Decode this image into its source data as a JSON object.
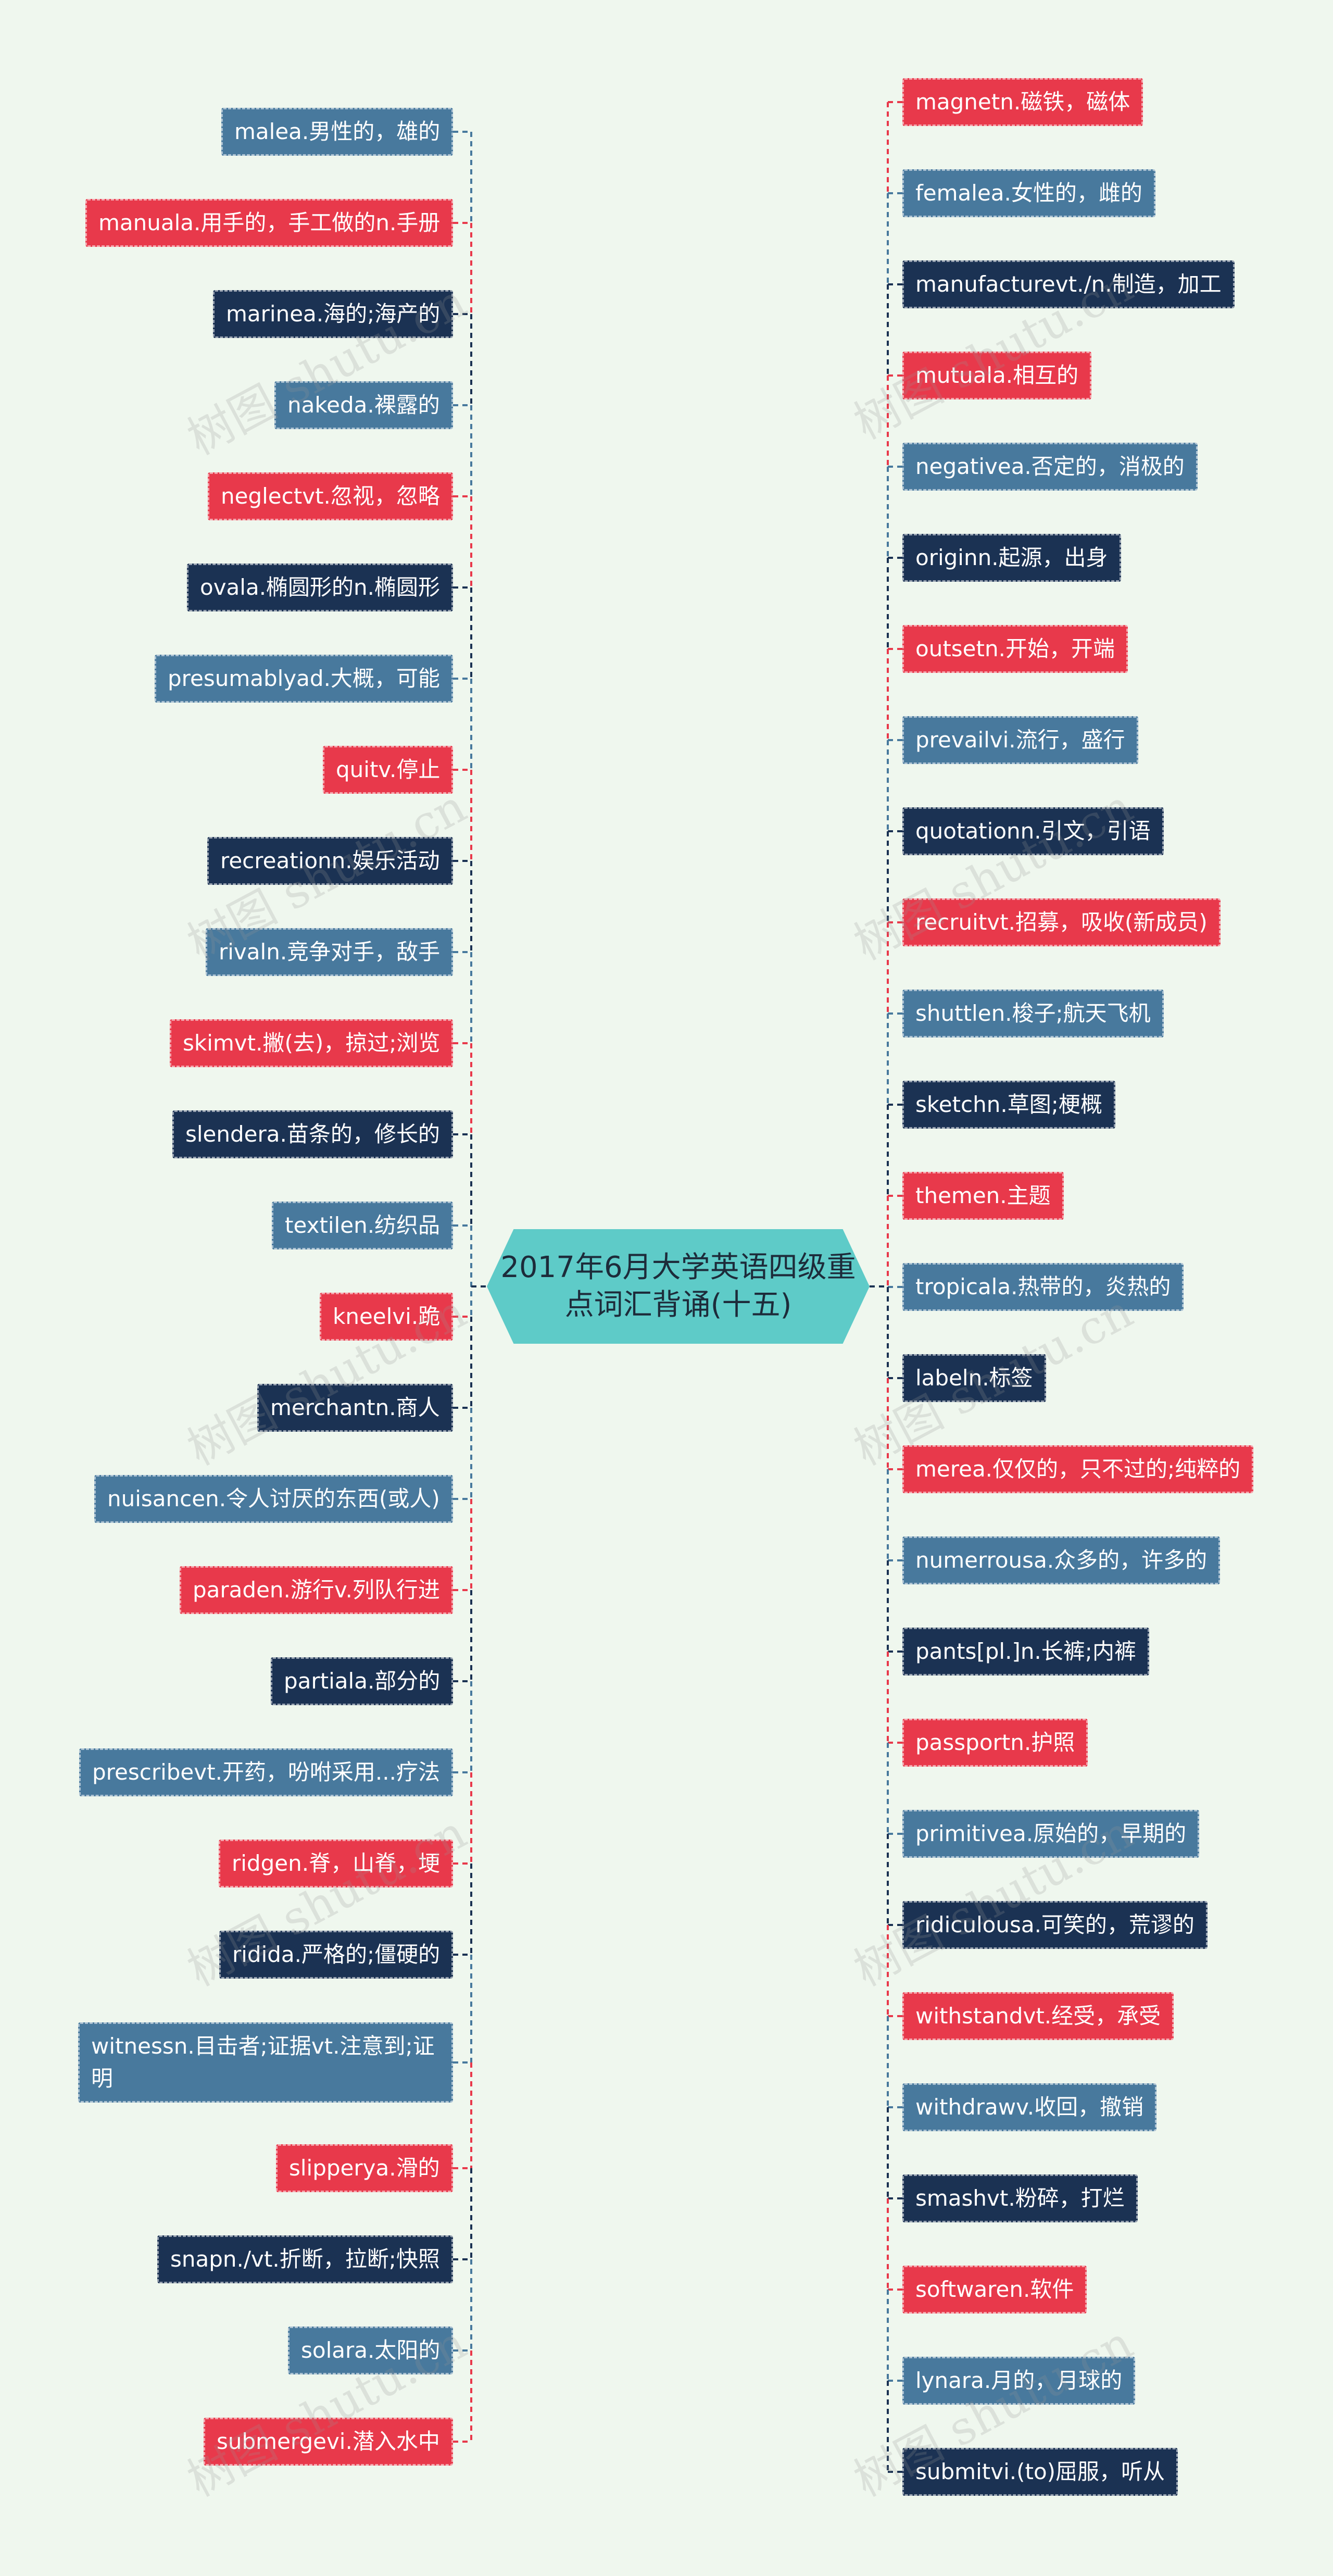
{
  "center": {
    "title": "2017年6月大学英语四级重点词汇背诵(十五)"
  },
  "colors": {
    "red": "#e8394b",
    "blue": "#48799d",
    "navy": "#1b3253",
    "center": "#5ecbc8",
    "background": "#eff7ee"
  },
  "watermark": "树图 shutu.cn",
  "left_nodes": [
    {
      "text": "malea.男性的，雄的",
      "color": "blue"
    },
    {
      "text": "manuala.用手的，手工做的n.手册",
      "color": "red"
    },
    {
      "text": "marinea.海的;海产的",
      "color": "navy"
    },
    {
      "text": "nakeda.裸露的",
      "color": "blue"
    },
    {
      "text": "neglectvt.忽视，忽略",
      "color": "red"
    },
    {
      "text": "ovala.椭圆形的n.椭圆形",
      "color": "navy"
    },
    {
      "text": "presumablyad.大概，可能",
      "color": "blue"
    },
    {
      "text": "quitv.停止",
      "color": "red"
    },
    {
      "text": "recreationn.娱乐活动",
      "color": "navy"
    },
    {
      "text": "rivaln.竞争对手，敌手",
      "color": "blue"
    },
    {
      "text": "skimvt.撇(去)，掠过;浏览",
      "color": "red"
    },
    {
      "text": "slendera.苗条的，修长的",
      "color": "navy"
    },
    {
      "text": "textilen.纺织品",
      "color": "blue"
    },
    {
      "text": "kneelvi.跪",
      "color": "red"
    },
    {
      "text": "merchantn.商人",
      "color": "navy"
    },
    {
      "text": "nuisancen.令人讨厌的东西(或人)",
      "color": "blue"
    },
    {
      "text": "paraden.游行v.列队行进",
      "color": "red"
    },
    {
      "text": "partiala.部分的",
      "color": "navy"
    },
    {
      "text": "prescribevt.开药，吩咐采用...疗法",
      "color": "blue"
    },
    {
      "text": "ridgen.脊，山脊，埂",
      "color": "red"
    },
    {
      "text": "ridida.严格的;僵硬的",
      "color": "navy"
    },
    {
      "text": "witnessn.目击者;证据vt.注意到;证明",
      "color": "blue"
    },
    {
      "text": "slipperya.滑的",
      "color": "red"
    },
    {
      "text": "snapn./vt.折断，拉断;快照",
      "color": "navy"
    },
    {
      "text": "solara.太阳的",
      "color": "blue"
    },
    {
      "text": "submergevi.潜入水中",
      "color": "red"
    }
  ],
  "right_nodes": [
    {
      "text": "magnetn.磁铁，磁体",
      "color": "red"
    },
    {
      "text": "femalea.女性的，雌的",
      "color": "blue"
    },
    {
      "text": "manufacturevt./n.制造，加工",
      "color": "navy"
    },
    {
      "text": "mutuala.相互的",
      "color": "red"
    },
    {
      "text": "negativea.否定的，消极的",
      "color": "blue"
    },
    {
      "text": "originn.起源，出身",
      "color": "navy"
    },
    {
      "text": "outsetn.开始，开端",
      "color": "red"
    },
    {
      "text": "prevailvi.流行，盛行",
      "color": "blue"
    },
    {
      "text": "quotationn.引文，引语",
      "color": "navy"
    },
    {
      "text": "recruitvt.招募，吸收(新成员)",
      "color": "red"
    },
    {
      "text": "shuttlen.梭子;航天飞机",
      "color": "blue"
    },
    {
      "text": "sketchn.草图;梗概",
      "color": "navy"
    },
    {
      "text": "themen.主题",
      "color": "red"
    },
    {
      "text": "tropicala.热带的，炎热的",
      "color": "blue"
    },
    {
      "text": "labeln.标签",
      "color": "navy"
    },
    {
      "text": "merea.仅仅的，只不过的;纯粹的",
      "color": "red"
    },
    {
      "text": "numerrousa.众多的，许多的",
      "color": "blue"
    },
    {
      "text": "pants[pl.]n.长裤;内裤",
      "color": "navy"
    },
    {
      "text": "passportn.护照",
      "color": "red"
    },
    {
      "text": "primitivea.原始的，早期的",
      "color": "blue"
    },
    {
      "text": "ridiculousa.可笑的，荒谬的",
      "color": "navy"
    },
    {
      "text": "withstandvt.经受，承受",
      "color": "red"
    },
    {
      "text": "withdrawv.收回，撤销",
      "color": "blue"
    },
    {
      "text": "smashvt.粉碎，打烂",
      "color": "navy"
    },
    {
      "text": "softwaren.软件",
      "color": "red"
    },
    {
      "text": "lynara.月的，月球的",
      "color": "blue"
    },
    {
      "text": "submitvi.(to)屈服，听从",
      "color": "navy"
    }
  ]
}
